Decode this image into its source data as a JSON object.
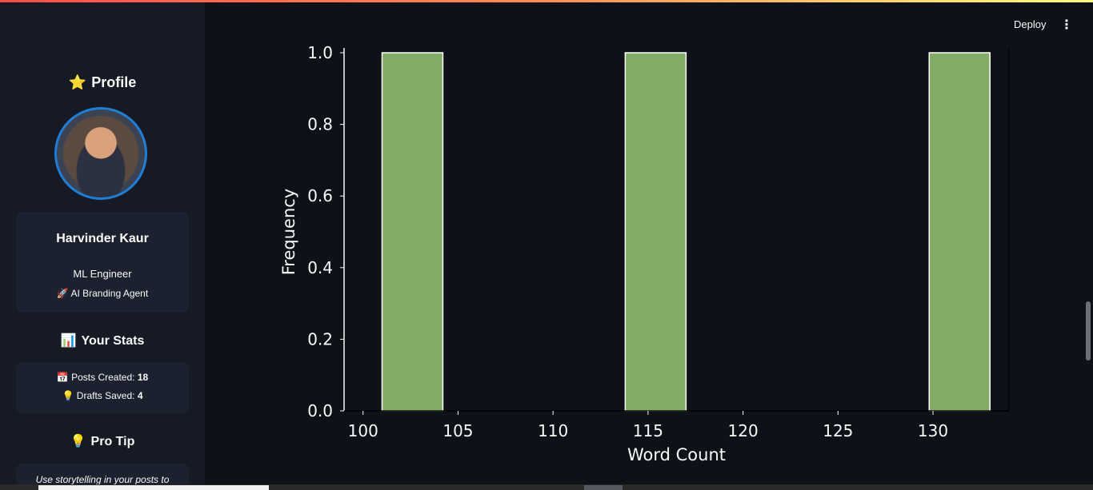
{
  "header": {
    "deploy_label": "Deploy",
    "menu_icon": "more-vertical-icon"
  },
  "sidebar": {
    "profile": {
      "icon": "⭐",
      "title": "Profile"
    },
    "user": {
      "name": "Harvinder Kaur",
      "role": "ML Engineer",
      "agent_icon": "🚀",
      "agent": "AI Branding Agent"
    },
    "stats": {
      "icon": "📊",
      "title": "Your Stats",
      "posts_icon": "📅",
      "posts_label": "Posts Created:",
      "posts_value": "18",
      "drafts_icon": "💡",
      "drafts_label": "Drafts Saved:",
      "drafts_value": "4"
    },
    "tip": {
      "icon": "💡",
      "title": "Pro Tip",
      "text": "Use storytelling in your posts to"
    }
  },
  "chart_data": {
    "type": "bar",
    "xlabel": "Word Count",
    "ylabel": "Frequency",
    "xlim": [
      99,
      134
    ],
    "ylim": [
      0,
      1.0
    ],
    "xticks": [
      100,
      105,
      110,
      115,
      120,
      125,
      130
    ],
    "yticks": [
      0.0,
      0.2,
      0.4,
      0.6,
      0.8,
      1.0
    ],
    "bins": [
      {
        "x0": 101.0,
        "x1": 104.2,
        "value": 1.0
      },
      {
        "x0": 113.8,
        "x1": 117.0,
        "value": 1.0
      },
      {
        "x0": 129.8,
        "x1": 133.0,
        "value": 1.0
      }
    ],
    "bar_color": "#83ab65",
    "bar_edge_color": "#ffffff"
  }
}
